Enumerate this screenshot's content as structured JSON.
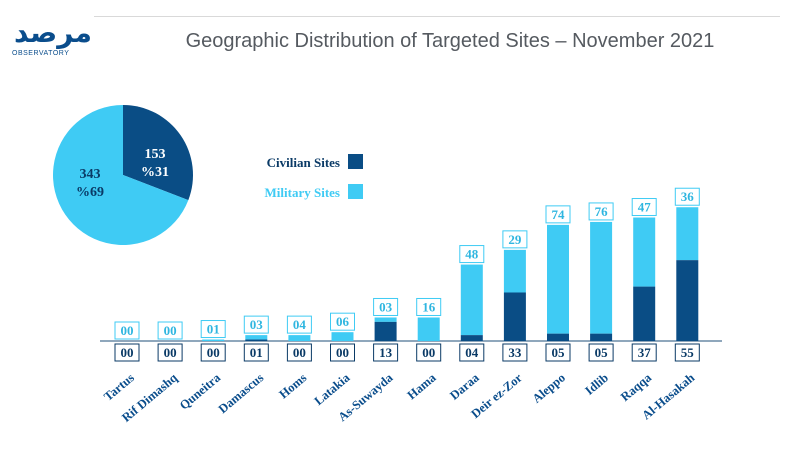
{
  "logo": {
    "mark": "مرصد",
    "subtitle": "OBSERVATORY"
  },
  "title": "Geographic Distribution of Targeted Sites – November 2021",
  "colors": {
    "civilian": "#0a4d85",
    "military": "#3fcbf4",
    "label_civilian": "#0a3a66",
    "label_military": "#2fb6e0"
  },
  "legend": {
    "civilian": "Civilian Sites",
    "military": "Military Sites"
  },
  "pie": {
    "civilian_count": "153",
    "civilian_pct": "%31",
    "military_count": "343",
    "military_pct": "%69"
  },
  "chart_data": {
    "type": "bar",
    "stacked": true,
    "categories": [
      "Tartus",
      "Rif Dimashq",
      "Quneitra",
      "Damascus",
      "Homs",
      "Latakia",
      "As-Suwayda",
      "Hama",
      "Daraa",
      "Deir ez-Zor",
      "Aleppo",
      "Idlib",
      "Raqqa",
      "Al-Hasakah"
    ],
    "series": [
      {
        "name": "Civilian Sites",
        "values": [
          0,
          0,
          0,
          1,
          0,
          0,
          13,
          0,
          4,
          33,
          5,
          5,
          37,
          55
        ],
        "labels": [
          "00",
          "00",
          "00",
          "01",
          "00",
          "00",
          "13",
          "00",
          "04",
          "33",
          "05",
          "05",
          "37",
          "55"
        ]
      },
      {
        "name": "Military Sites",
        "values": [
          0,
          0,
          1,
          3,
          4,
          6,
          3,
          16,
          48,
          29,
          74,
          76,
          47,
          36
        ],
        "labels": [
          "00",
          "00",
          "01",
          "03",
          "04",
          "06",
          "03",
          "16",
          "48",
          "29",
          "74",
          "76",
          "47",
          "36"
        ]
      }
    ]
  }
}
